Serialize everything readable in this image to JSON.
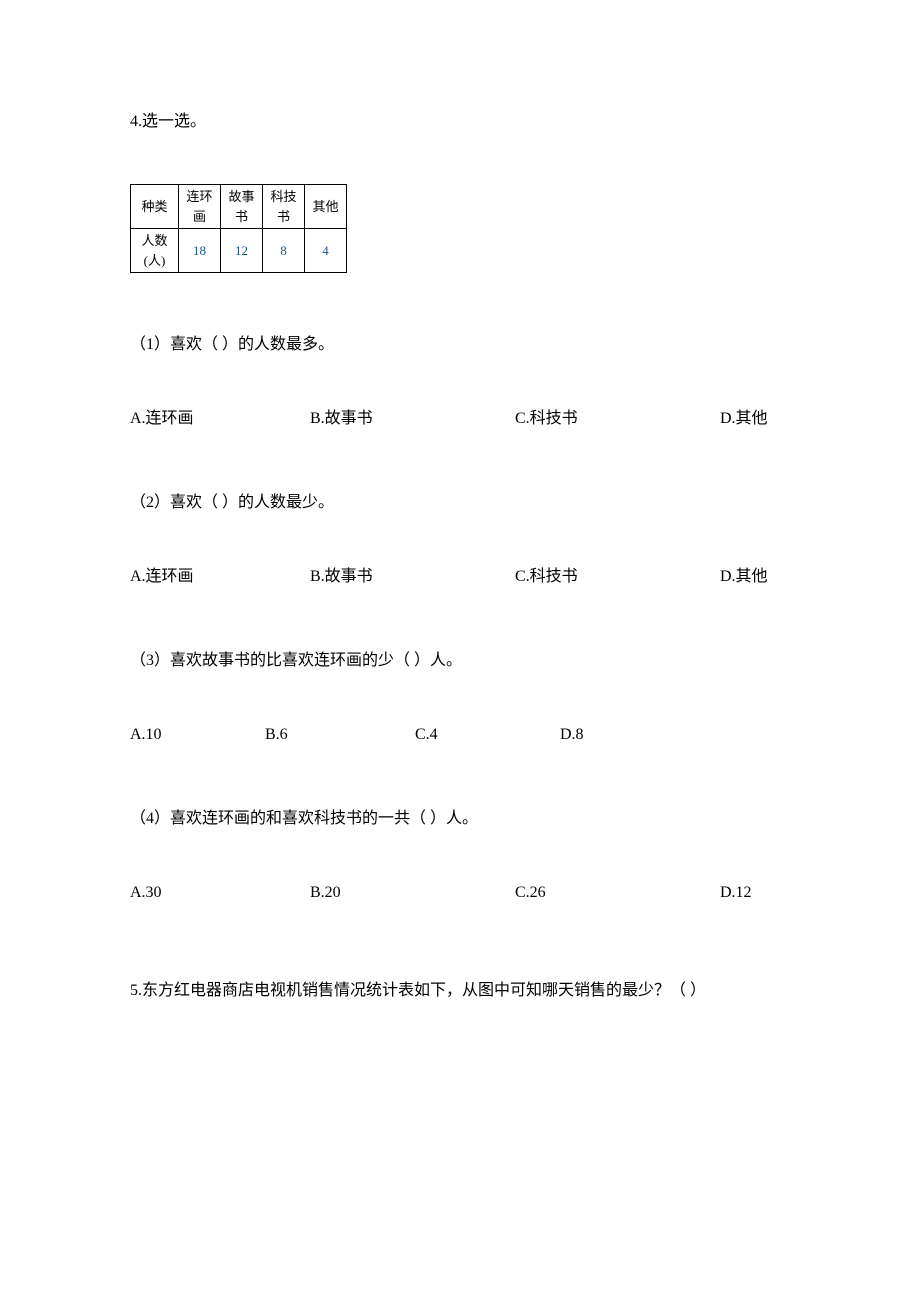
{
  "question4": {
    "header": "4.选一选。",
    "table": {
      "row1": {
        "label": "种类",
        "c1": "连环画",
        "c2": "故事书",
        "c3": "科技书",
        "c4": "其他"
      },
      "row2": {
        "label": "人数(人)",
        "c1": "18",
        "c2": "12",
        "c3": "8",
        "c4": "4"
      }
    },
    "sub1": {
      "text": "（1）喜欢（   ）的人数最多。",
      "opts": {
        "a": "A.连环画",
        "b": "B.故事书",
        "c": "C.科技书",
        "d": "D.其他"
      }
    },
    "sub2": {
      "text": "（2）喜欢（   ）的人数最少。",
      "opts": {
        "a": "A.连环画",
        "b": "B.故事书",
        "c": "C.科技书",
        "d": "D.其他"
      }
    },
    "sub3": {
      "text": "（3）喜欢故事书的比喜欢连环画的少（   ）人。",
      "opts": {
        "a": "A.10",
        "b": "B.6",
        "c": "C.4",
        "d": "D.8"
      }
    },
    "sub4": {
      "text": "（4）喜欢连环画的和喜欢科技书的一共（   ）人。",
      "opts": {
        "a": "A.30",
        "b": "B.20",
        "c": "C.26",
        "d": "D.12"
      }
    }
  },
  "question5": {
    "text": "5.东方红电器商店电视机销售情况统计表如下，从图中可知哪天销售的最少？（   ）"
  },
  "styling": {
    "background_color": "#ffffff",
    "text_color": "#000000",
    "number_color": "#1a5490",
    "border_color": "#000000",
    "body_fontsize": 16,
    "table_fontsize": 13
  }
}
